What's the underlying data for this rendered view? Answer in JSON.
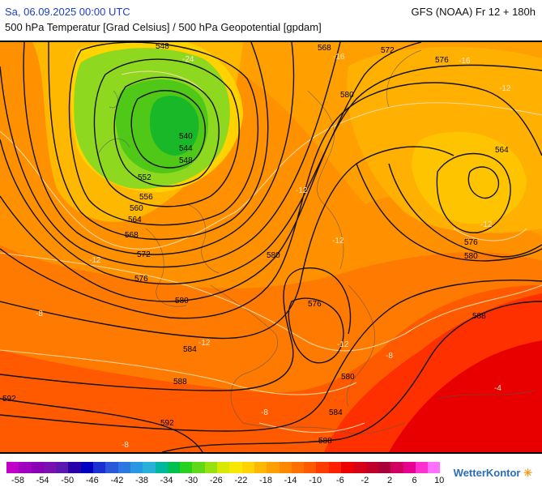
{
  "header": {
    "date_label": "Sa, 06.09.2025 00:00 UTC",
    "model_label": "GFS (NOAA) Fr 12 + 180h",
    "subtitle": "500 hPa Temperatur [Grad Celsius] / 500 hPa Geopotential [gpdam]"
  },
  "map": {
    "geopotential_labels": [
      "548",
      "568",
      "572",
      "576",
      "580",
      "540",
      "544",
      "548",
      "552",
      "556",
      "560",
      "564",
      "568",
      "572",
      "576",
      "580",
      "564",
      "576",
      "580",
      "580",
      "576",
      "588",
      "584",
      "588",
      "592",
      "592",
      "580",
      "584",
      "588"
    ],
    "temperature_labels": [
      "-24",
      "-16",
      "-16",
      "-12",
      "-12",
      "-12",
      "-12",
      "-12",
      "-8",
      "-8",
      "-8",
      "-8",
      "-4",
      "-12",
      "-12"
    ]
  },
  "legend": {
    "colors": [
      "#c000c8",
      "#a000c0",
      "#8a00b4",
      "#7a10b0",
      "#5a18b0",
      "#2a00a8",
      "#0000c0",
      "#1a30d0",
      "#2a58d8",
      "#2a78e0",
      "#2898e0",
      "#28b0d8",
      "#00b8a0",
      "#00c050",
      "#28d020",
      "#60d818",
      "#98e010",
      "#d8e800",
      "#f8e800",
      "#ffd200",
      "#ffb800",
      "#ffa000",
      "#ff8800",
      "#ff7000",
      "#ff5a00",
      "#ff3c00",
      "#ff2000",
      "#ee0000",
      "#d80018",
      "#c00028",
      "#a80038",
      "#d00060",
      "#e80090",
      "#ff30d0",
      "#ff70ff"
    ],
    "tick_labels": [
      "-58",
      "-54",
      "-50",
      "-46",
      "-42",
      "-38",
      "-34",
      "-30",
      "-26",
      "-22",
      "-18",
      "-14",
      "-10",
      "-6",
      "-2",
      "2",
      "6",
      "10"
    ]
  },
  "brand": {
    "name": "WetterKontor"
  }
}
